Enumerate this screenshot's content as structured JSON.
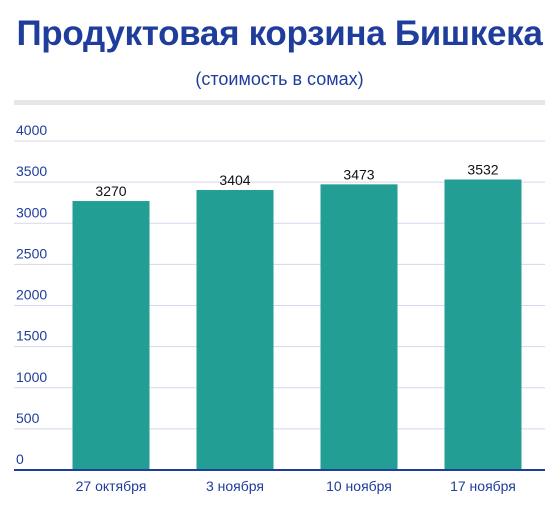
{
  "header": {
    "title": "Продуктовая корзина Бишкека",
    "subtitle": "(стоимость в сомах)"
  },
  "colors": {
    "bar": "#229e94",
    "axis_text": "#1f3d9b",
    "grid": "#d5d8ea",
    "baseline": "#1f3d9b",
    "divider": "#e6e6e6"
  },
  "chart_data": {
    "type": "bar",
    "title": "Продуктовая корзина Бишкека",
    "subtitle": "(стоимость в сомах)",
    "categories": [
      "27 октября",
      "3 ноября",
      "10 ноября",
      "17 ноября"
    ],
    "values": [
      3270,
      3404,
      3473,
      3532
    ],
    "ylim": [
      0,
      4000
    ],
    "yticks": [
      "0",
      "500",
      "1000",
      "1500",
      "2000",
      "2500",
      "3000",
      "3500",
      "4000"
    ],
    "grid": true,
    "legend": "none"
  }
}
